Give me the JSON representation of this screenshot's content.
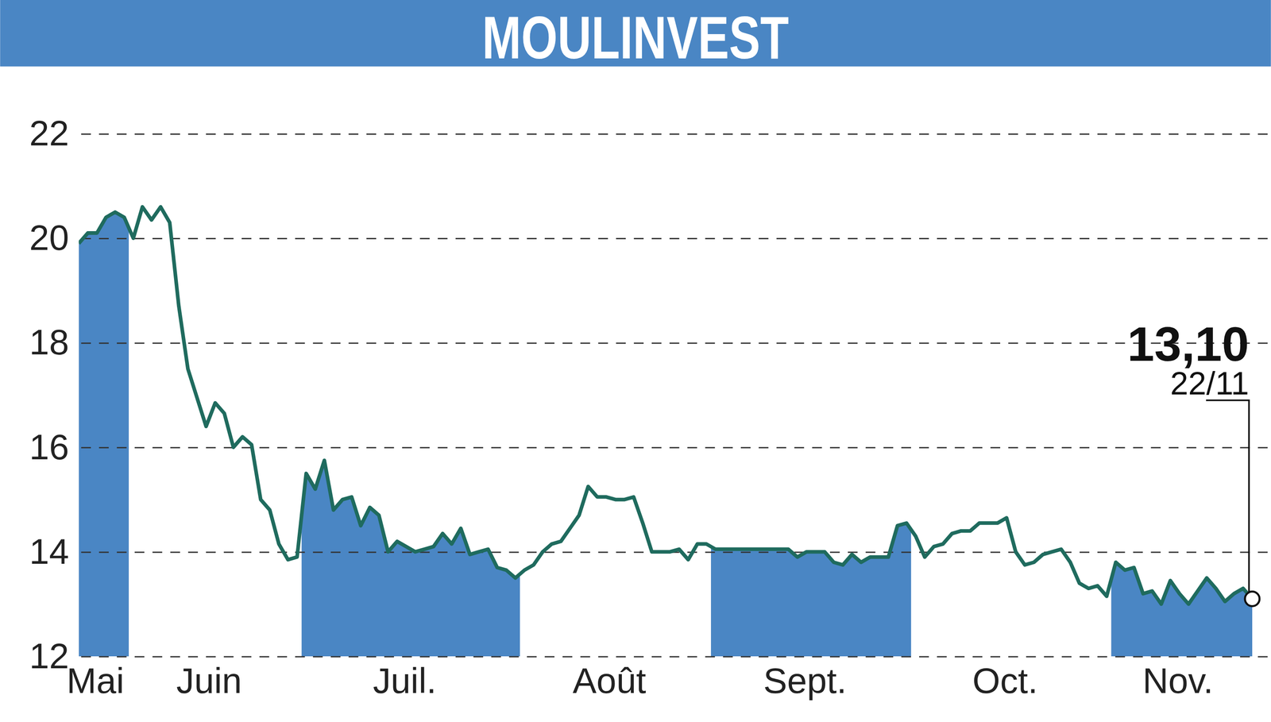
{
  "chart_data": {
    "type": "line",
    "title": "MOULINVEST",
    "categories": [
      "Mai",
      null,
      null,
      null,
      null,
      null,
      "Juin",
      null,
      null,
      null,
      null,
      null,
      null,
      null,
      null,
      null,
      null,
      null,
      null,
      null,
      null,
      null,
      null,
      null,
      null,
      "Juil.",
      null,
      null,
      null,
      null,
      null,
      null,
      null,
      null,
      null,
      null,
      null,
      null,
      null,
      null,
      null,
      null,
      null,
      null,
      null,
      null,
      null,
      null,
      null,
      "Août",
      null,
      null,
      null,
      null,
      null,
      null,
      null,
      null,
      null,
      null,
      null,
      null,
      null,
      null,
      null,
      null,
      null,
      null,
      null,
      null,
      "Sept.",
      null,
      null,
      null,
      null,
      null,
      null,
      null,
      null,
      null,
      null,
      null,
      null,
      null,
      null,
      null,
      null,
      null,
      null,
      null,
      null,
      null,
      "Oct.",
      null,
      null,
      null,
      null,
      null,
      null,
      null,
      null,
      null,
      null,
      null,
      null,
      null,
      null,
      null,
      null,
      null,
      null,
      null,
      null,
      null,
      "Nov.",
      null,
      null,
      null,
      null,
      null,
      null,
      null,
      null,
      null,
      null,
      null,
      null,
      null,
      null,
      null
    ],
    "values": [
      19.9,
      20.1,
      20.1,
      20.4,
      20.5,
      20.4,
      20.0,
      20.6,
      20.35,
      20.6,
      20.3,
      18.7,
      17.5,
      16.95,
      16.4,
      16.85,
      16.65,
      16.0,
      16.2,
      16.05,
      15.0,
      14.8,
      14.15,
      13.85,
      13.9,
      15.5,
      15.2,
      15.75,
      14.8,
      15.0,
      15.05,
      14.5,
      14.85,
      14.7,
      14.0,
      14.2,
      14.1,
      14.0,
      14.05,
      14.1,
      14.35,
      14.15,
      14.45,
      13.95,
      14.0,
      14.05,
      13.7,
      13.65,
      13.5,
      13.65,
      13.75,
      14.0,
      14.15,
      14.2,
      14.45,
      14.7,
      15.25,
      15.05,
      15.05,
      15.0,
      15.0,
      15.05,
      14.55,
      14.0,
      14.0,
      14.0,
      14.05,
      13.85,
      14.15,
      14.15,
      14.05,
      14.05,
      14.05,
      14.05,
      14.05,
      14.05,
      14.05,
      14.05,
      14.05,
      13.9,
      14.0,
      14.0,
      14.0,
      13.8,
      13.75,
      13.95,
      13.8,
      13.9,
      13.9,
      13.9,
      14.5,
      14.55,
      14.3,
      13.9,
      14.1,
      14.15,
      14.35,
      14.4,
      14.4,
      14.55,
      14.55,
      14.55,
      14.65,
      14.0,
      13.75,
      13.8,
      13.95,
      14.0,
      14.05,
      13.8,
      13.4,
      13.3,
      13.35,
      13.15,
      13.8,
      13.65,
      13.7,
      13.2,
      13.25,
      13.0,
      13.45,
      13.2,
      13.0,
      13.25,
      13.5,
      13.3,
      13.05,
      13.2,
      13.3,
      13.1
    ],
    "color": "#1f6b5e",
    "ylim": [
      12,
      22
    ],
    "yticks": [
      12,
      14,
      16,
      18,
      20,
      22
    ],
    "grid": true,
    "annotations": [
      {
        "text": "13,10",
        "value": 13.1
      },
      {
        "text": "22/11"
      }
    ]
  }
}
